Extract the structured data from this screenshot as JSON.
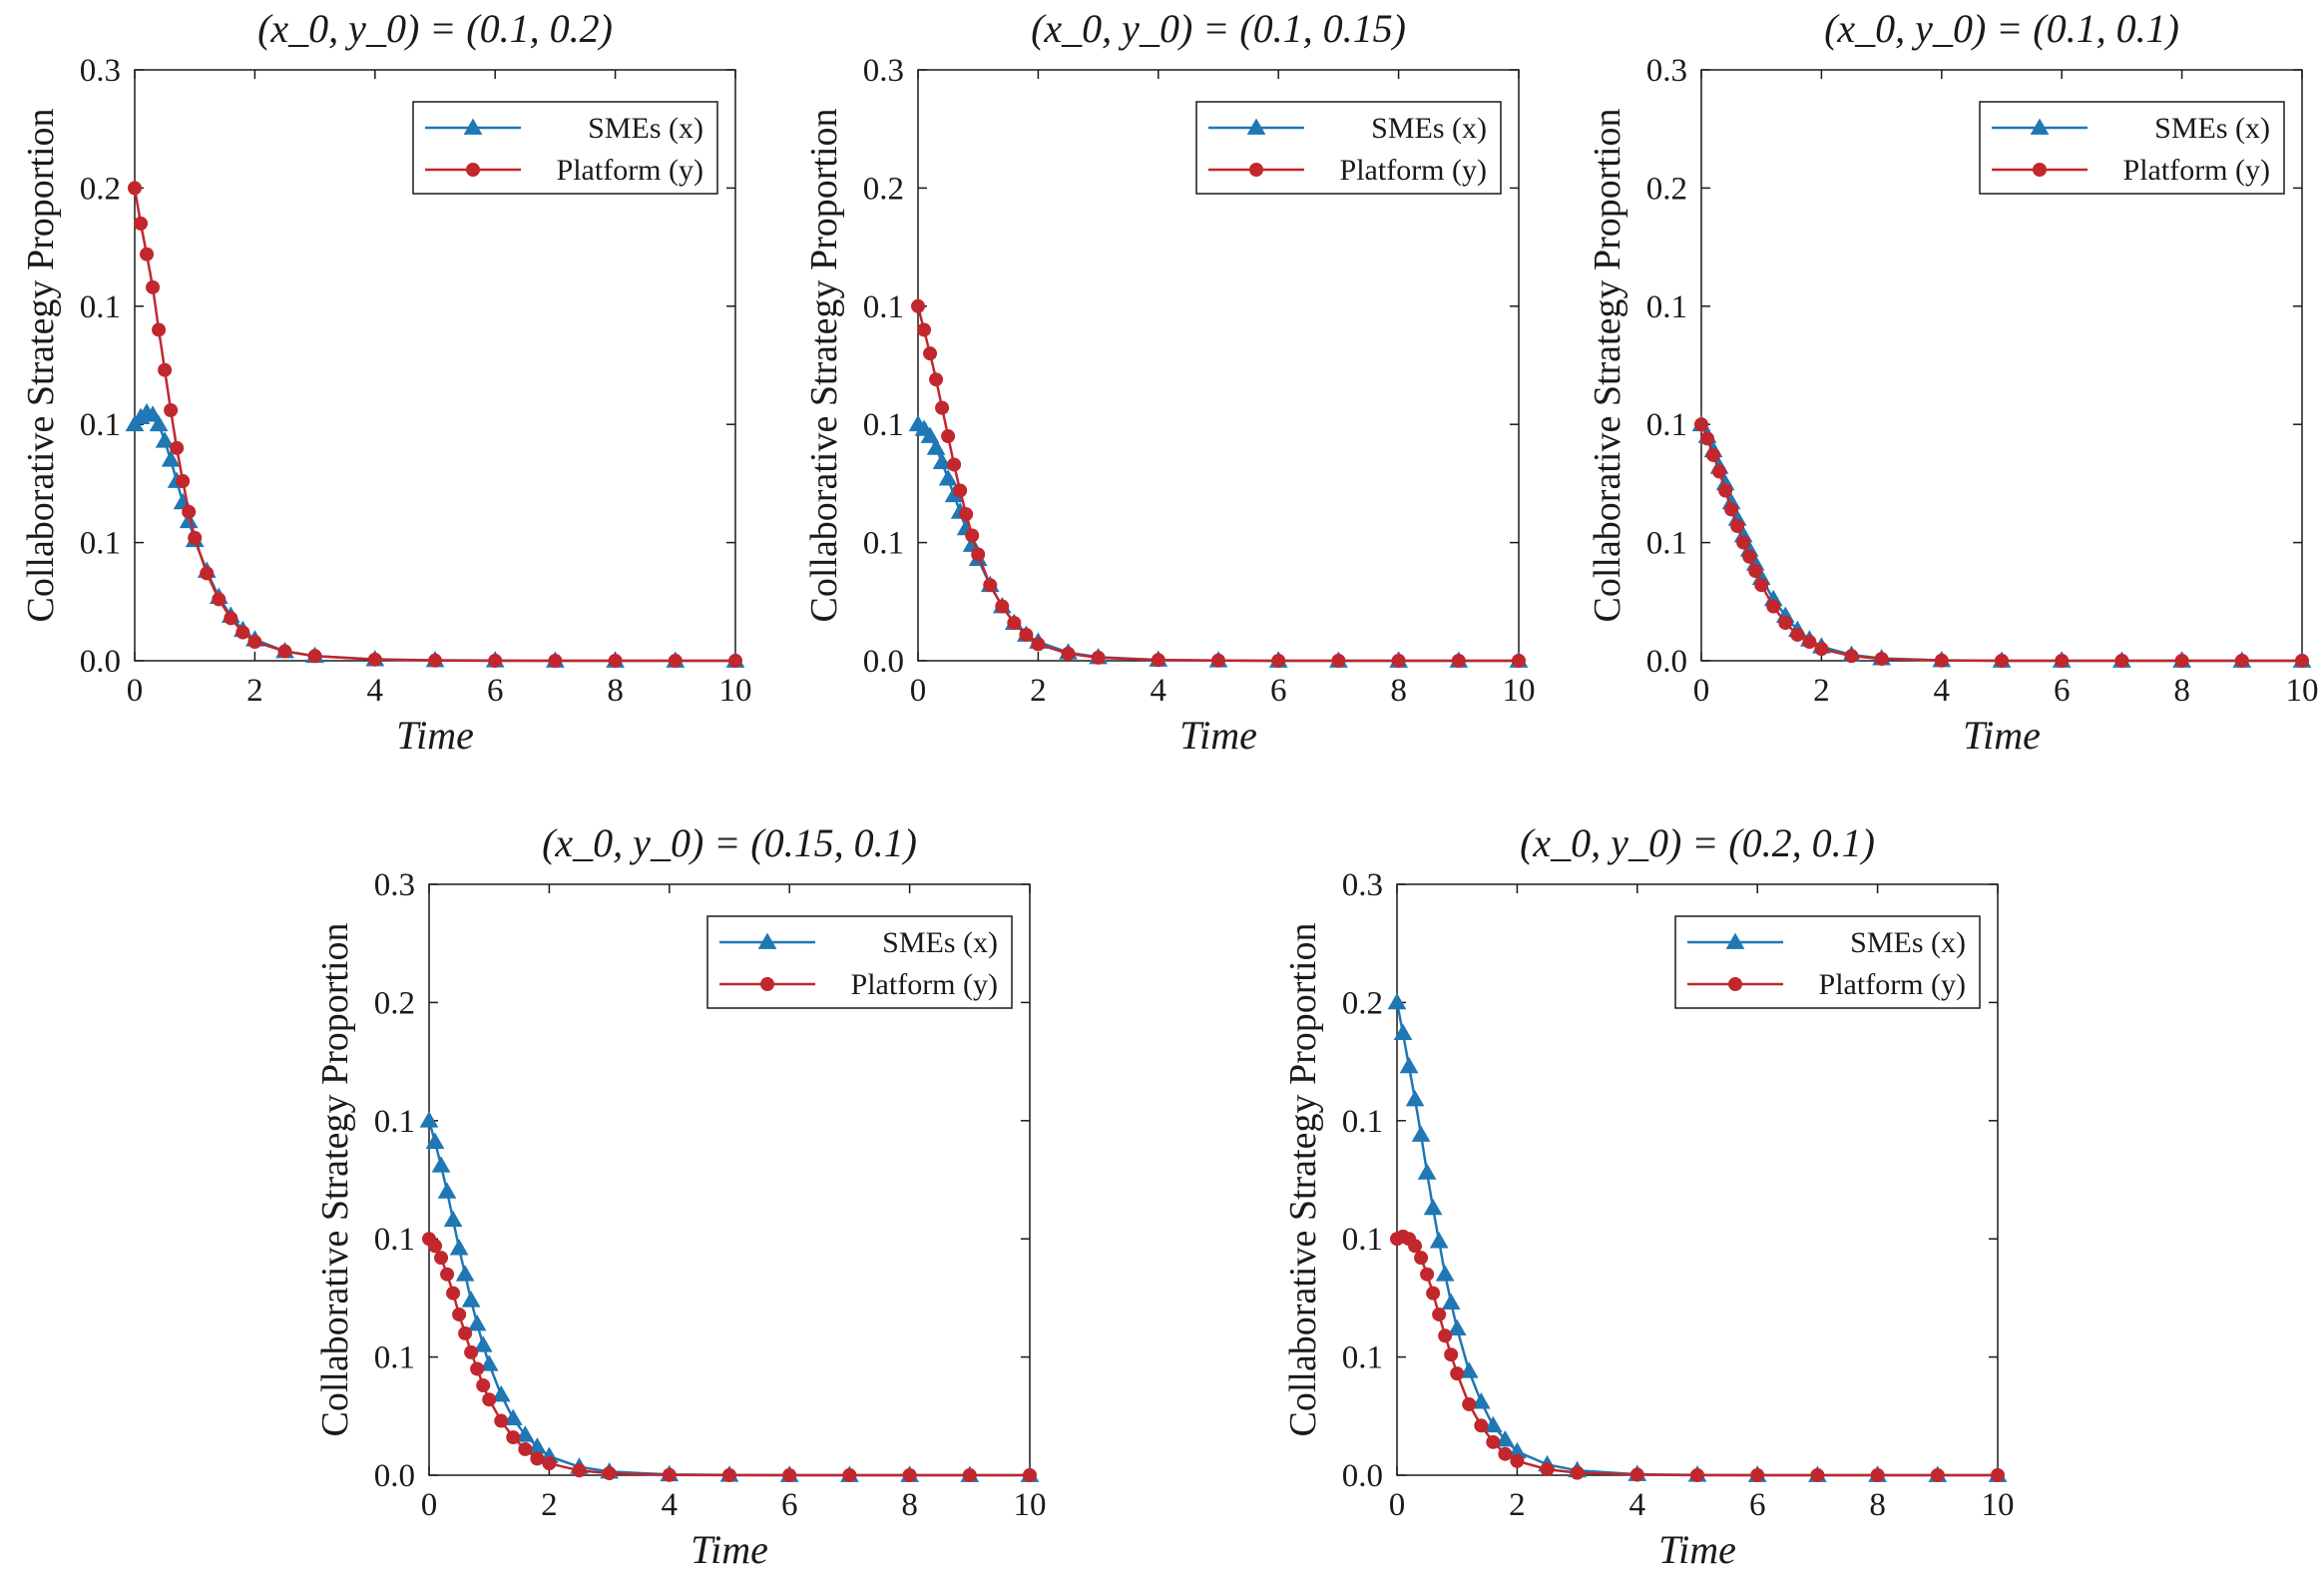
{
  "colors": {
    "smes": "#1f77b4",
    "platform": "#c1272d",
    "axis": "#1a1a1a"
  },
  "chart_data": [
    {
      "type": "line",
      "title": "(x_0, y_0) = (0.1, 0.2)",
      "xlabel": "Time",
      "ylabel": "Collaborative Strategy Proportion",
      "xlim": [
        0,
        10
      ],
      "ylim": [
        0,
        0.25
      ],
      "x_ticks": [
        0,
        2,
        4,
        6,
        8,
        10
      ],
      "x_tick_labels": [
        "0",
        "2",
        "4",
        "6",
        "8",
        "10"
      ],
      "y_ticks": [
        0,
        0.05,
        0.1,
        0.15,
        0.2,
        0.25
      ],
      "y_tick_labels": [
        "0.0",
        "0.1",
        "0.1",
        "0.1",
        "0.2",
        "0.3"
      ],
      "legend": {
        "position": "top-right"
      },
      "series": [
        {
          "name": "SMEs (x)",
          "marker": "triangle",
          "color": "#1f77b4",
          "x": [
            0,
            0.1,
            0.2,
            0.3,
            0.4,
            0.5,
            0.6,
            0.7,
            0.8,
            0.9,
            1.0,
            1.2,
            1.4,
            1.6,
            1.8,
            2.0,
            2.5,
            3,
            4,
            5,
            6,
            7,
            8,
            9,
            10
          ],
          "y": [
            0.1,
            0.103,
            0.105,
            0.104,
            0.1,
            0.093,
            0.085,
            0.076,
            0.067,
            0.059,
            0.051,
            0.038,
            0.027,
            0.019,
            0.013,
            0.009,
            0.004,
            0.002,
            0.0006,
            0.0002,
            0.0001,
            0,
            0,
            0,
            0
          ]
        },
        {
          "name": "Platform (y)",
          "marker": "circle",
          "color": "#c1272d",
          "x": [
            0,
            0.1,
            0.2,
            0.3,
            0.4,
            0.5,
            0.6,
            0.7,
            0.8,
            0.9,
            1.0,
            1.2,
            1.4,
            1.6,
            1.8,
            2.0,
            2.5,
            3,
            4,
            5,
            6,
            7,
            8,
            9,
            10
          ],
          "y": [
            0.2,
            0.185,
            0.172,
            0.158,
            0.14,
            0.123,
            0.106,
            0.09,
            0.076,
            0.063,
            0.052,
            0.037,
            0.026,
            0.018,
            0.012,
            0.008,
            0.004,
            0.002,
            0.0005,
            0.0001,
            0,
            0,
            0,
            0,
            0
          ]
        }
      ]
    },
    {
      "type": "line",
      "title": "(x_0, y_0) = (0.1, 0.15)",
      "xlabel": "Time",
      "ylabel": "Collaborative Strategy Proportion",
      "xlim": [
        0,
        10
      ],
      "ylim": [
        0,
        0.25
      ],
      "x_ticks": [
        0,
        2,
        4,
        6,
        8,
        10
      ],
      "x_tick_labels": [
        "0",
        "2",
        "4",
        "6",
        "8",
        "10"
      ],
      "y_ticks": [
        0,
        0.05,
        0.1,
        0.15,
        0.2,
        0.25
      ],
      "y_tick_labels": [
        "0.0",
        "0.1",
        "0.1",
        "0.1",
        "0.2",
        "0.3"
      ],
      "legend": {
        "position": "top-right"
      },
      "series": [
        {
          "name": "SMEs (x)",
          "marker": "triangle",
          "color": "#1f77b4",
          "x": [
            0,
            0.1,
            0.2,
            0.3,
            0.4,
            0.5,
            0.6,
            0.7,
            0.8,
            0.9,
            1.0,
            1.2,
            1.4,
            1.6,
            1.8,
            2.0,
            2.5,
            3,
            4,
            5,
            6,
            7,
            8,
            9,
            10
          ],
          "y": [
            0.1,
            0.098,
            0.095,
            0.09,
            0.084,
            0.077,
            0.07,
            0.063,
            0.056,
            0.049,
            0.043,
            0.032,
            0.023,
            0.016,
            0.011,
            0.008,
            0.0035,
            0.0015,
            0.0004,
            0.0001,
            0,
            0,
            0,
            0,
            0
          ]
        },
        {
          "name": "Platform (y)",
          "marker": "circle",
          "color": "#c1272d",
          "x": [
            0,
            0.1,
            0.2,
            0.3,
            0.4,
            0.5,
            0.6,
            0.7,
            0.8,
            0.9,
            1.0,
            1.2,
            1.4,
            1.6,
            1.8,
            2.0,
            2.5,
            3,
            4,
            5,
            6,
            7,
            8,
            9,
            10
          ],
          "y": [
            0.15,
            0.14,
            0.13,
            0.119,
            0.107,
            0.095,
            0.083,
            0.072,
            0.062,
            0.053,
            0.045,
            0.032,
            0.023,
            0.016,
            0.011,
            0.007,
            0.003,
            0.0013,
            0.0003,
            0.0001,
            0,
            0,
            0,
            0,
            0
          ]
        }
      ]
    },
    {
      "type": "line",
      "title": "(x_0, y_0) = (0.1, 0.1)",
      "xlabel": "Time",
      "ylabel": "Collaborative Strategy Proportion",
      "xlim": [
        0,
        10
      ],
      "ylim": [
        0,
        0.25
      ],
      "x_ticks": [
        0,
        2,
        4,
        6,
        8,
        10
      ],
      "x_tick_labels": [
        "0",
        "2",
        "4",
        "6",
        "8",
        "10"
      ],
      "y_ticks": [
        0,
        0.05,
        0.1,
        0.15,
        0.2,
        0.25
      ],
      "y_tick_labels": [
        "0.0",
        "0.1",
        "0.1",
        "0.1",
        "0.2",
        "0.3"
      ],
      "legend": {
        "position": "top-right"
      },
      "series": [
        {
          "name": "SMEs (x)",
          "marker": "triangle",
          "color": "#1f77b4",
          "x": [
            0,
            0.1,
            0.2,
            0.3,
            0.4,
            0.5,
            0.6,
            0.7,
            0.8,
            0.9,
            1.0,
            1.2,
            1.4,
            1.6,
            1.8,
            2.0,
            2.5,
            3,
            4,
            5,
            6,
            7,
            8,
            9,
            10
          ],
          "y": [
            0.1,
            0.095,
            0.089,
            0.082,
            0.075,
            0.067,
            0.06,
            0.053,
            0.047,
            0.041,
            0.035,
            0.026,
            0.019,
            0.013,
            0.009,
            0.006,
            0.0025,
            0.001,
            0.0002,
            0,
            0,
            0,
            0,
            0,
            0
          ]
        },
        {
          "name": "Platform (y)",
          "marker": "circle",
          "color": "#c1272d",
          "x": [
            0,
            0.1,
            0.2,
            0.3,
            0.4,
            0.5,
            0.6,
            0.7,
            0.8,
            0.9,
            1.0,
            1.2,
            1.4,
            1.6,
            1.8,
            2.0,
            2.5,
            3,
            4,
            5,
            6,
            7,
            8,
            9,
            10
          ],
          "y": [
            0.1,
            0.094,
            0.087,
            0.08,
            0.072,
            0.064,
            0.057,
            0.05,
            0.044,
            0.038,
            0.032,
            0.023,
            0.016,
            0.011,
            0.008,
            0.005,
            0.002,
            0.0008,
            0.0001,
            0,
            0,
            0,
            0,
            0,
            0
          ]
        }
      ]
    },
    {
      "type": "line",
      "title": "(x_0, y_0) = (0.15, 0.1)",
      "xlabel": "Time",
      "ylabel": "Collaborative Strategy Proportion",
      "xlim": [
        0,
        10
      ],
      "ylim": [
        0,
        0.25
      ],
      "x_ticks": [
        0,
        2,
        4,
        6,
        8,
        10
      ],
      "x_tick_labels": [
        "0",
        "2",
        "4",
        "6",
        "8",
        "10"
      ],
      "y_ticks": [
        0,
        0.05,
        0.1,
        0.15,
        0.2,
        0.25
      ],
      "y_tick_labels": [
        "0.0",
        "0.1",
        "0.1",
        "0.1",
        "0.2",
        "0.3"
      ],
      "legend": {
        "position": "top-right"
      },
      "series": [
        {
          "name": "SMEs (x)",
          "marker": "triangle",
          "color": "#1f77b4",
          "x": [
            0,
            0.1,
            0.2,
            0.3,
            0.4,
            0.5,
            0.6,
            0.7,
            0.8,
            0.9,
            1.0,
            1.2,
            1.4,
            1.6,
            1.8,
            2.0,
            2.5,
            3,
            4,
            5,
            6,
            7,
            8,
            9,
            10
          ],
          "y": [
            0.15,
            0.141,
            0.131,
            0.12,
            0.108,
            0.096,
            0.085,
            0.074,
            0.064,
            0.055,
            0.047,
            0.034,
            0.024,
            0.017,
            0.012,
            0.008,
            0.0035,
            0.0015,
            0.0003,
            0.0001,
            0,
            0,
            0,
            0,
            0
          ]
        },
        {
          "name": "Platform (y)",
          "marker": "circle",
          "color": "#c1272d",
          "x": [
            0,
            0.1,
            0.2,
            0.3,
            0.4,
            0.5,
            0.6,
            0.7,
            0.8,
            0.9,
            1.0,
            1.2,
            1.4,
            1.6,
            1.8,
            2.0,
            2.5,
            3,
            4,
            5,
            6,
            7,
            8,
            9,
            10
          ],
          "y": [
            0.1,
            0.097,
            0.092,
            0.085,
            0.077,
            0.068,
            0.06,
            0.052,
            0.045,
            0.038,
            0.032,
            0.023,
            0.016,
            0.011,
            0.007,
            0.005,
            0.002,
            0.0008,
            0.0001,
            0,
            0,
            0,
            0,
            0,
            0
          ]
        }
      ]
    },
    {
      "type": "line",
      "title": "(x_0, y_0) = (0.2, 0.1)",
      "xlabel": "Time",
      "ylabel": "Collaborative Strategy Proportion",
      "xlim": [
        0,
        10
      ],
      "ylim": [
        0,
        0.25
      ],
      "x_ticks": [
        0,
        2,
        4,
        6,
        8,
        10
      ],
      "x_tick_labels": [
        "0",
        "2",
        "4",
        "6",
        "8",
        "10"
      ],
      "y_ticks": [
        0,
        0.05,
        0.1,
        0.15,
        0.2,
        0.25
      ],
      "y_tick_labels": [
        "0.0",
        "0.1",
        "0.1",
        "0.1",
        "0.2",
        "0.3"
      ],
      "legend": {
        "position": "top-right"
      },
      "series": [
        {
          "name": "SMEs (x)",
          "marker": "triangle",
          "color": "#1f77b4",
          "x": [
            0,
            0.1,
            0.2,
            0.3,
            0.4,
            0.5,
            0.6,
            0.7,
            0.8,
            0.9,
            1.0,
            1.2,
            1.4,
            1.6,
            1.8,
            2.0,
            2.5,
            3,
            4,
            5,
            6,
            7,
            8,
            9,
            10
          ],
          "y": [
            0.2,
            0.187,
            0.173,
            0.159,
            0.144,
            0.128,
            0.113,
            0.099,
            0.085,
            0.073,
            0.062,
            0.044,
            0.031,
            0.021,
            0.015,
            0.01,
            0.0045,
            0.002,
            0.0004,
            0.0001,
            0,
            0,
            0,
            0,
            0
          ]
        },
        {
          "name": "Platform (y)",
          "marker": "circle",
          "color": "#c1272d",
          "x": [
            0,
            0.1,
            0.2,
            0.3,
            0.4,
            0.5,
            0.6,
            0.7,
            0.8,
            0.9,
            1.0,
            1.2,
            1.4,
            1.6,
            1.8,
            2.0,
            2.5,
            3,
            4,
            5,
            6,
            7,
            8,
            9,
            10
          ],
          "y": [
            0.1,
            0.101,
            0.1,
            0.097,
            0.092,
            0.085,
            0.077,
            0.068,
            0.059,
            0.051,
            0.043,
            0.03,
            0.021,
            0.014,
            0.009,
            0.006,
            0.0025,
            0.001,
            0.0002,
            0,
            0,
            0,
            0,
            0,
            0
          ]
        }
      ]
    }
  ]
}
